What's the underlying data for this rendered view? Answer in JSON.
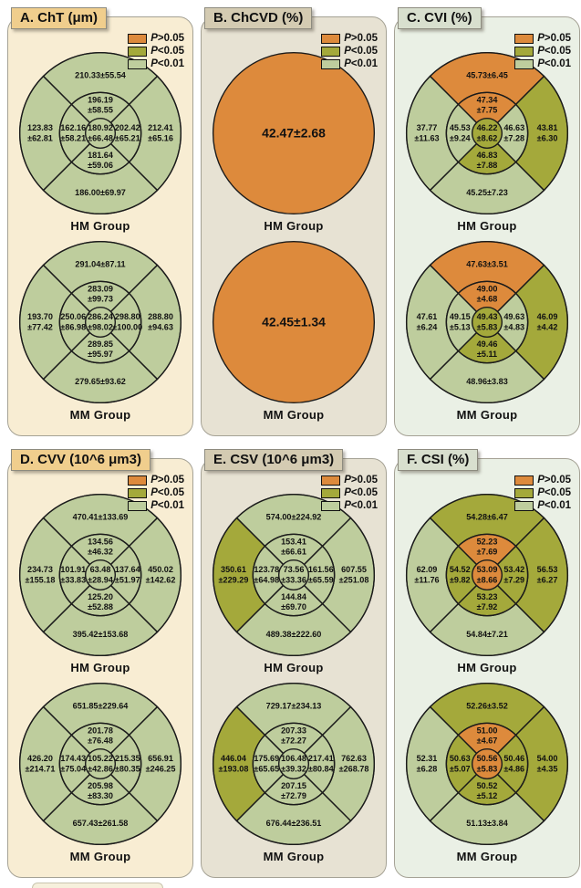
{
  "colors": {
    "ns": "#DD8A3C",
    "p05": "#A4A93B",
    "p01": "#BECD9D",
    "stroke": "#1b1b1b",
    "text": "#111111"
  },
  "themes": {
    "tan": {
      "panel": "#F8EDD3",
      "title": "#F0CE8D"
    },
    "gray": {
      "panel": "#E7E2D3",
      "title": "#D4CBB2"
    },
    "green": {
      "panel": "#EAF0E5",
      "title": "#D8DFCE"
    }
  },
  "legend": [
    {
      "label": "P>0.05",
      "sig": "ns"
    },
    {
      "label": "P<0.05",
      "sig": "p05"
    },
    {
      "label": "P<0.01",
      "sig": "p01"
    }
  ],
  "chart_data": [
    {
      "id": "A",
      "title": "A. ChT (μm)",
      "theme": "tan",
      "type": "etdrs_sector_map",
      "groups": [
        {
          "label": "HM Group",
          "sectors": {
            "outer_top": {
              "v": "210.33±55.54",
              "sig": "p01"
            },
            "outer_right": {
              "v": "212.41",
              "v2": "±65.16",
              "sig": "p01"
            },
            "outer_bottom": {
              "v": "186.00±69.97",
              "sig": "p01"
            },
            "outer_left": {
              "v": "123.83",
              "v2": "±62.81",
              "sig": "p01"
            },
            "inner_top": {
              "v": "196.19",
              "v2": "±58.55",
              "sig": "p01"
            },
            "inner_right": {
              "v": "202.42",
              "v2": "±65.21",
              "sig": "p01"
            },
            "inner_bottom": {
              "v": "181.64",
              "v2": "±59.06",
              "sig": "p01"
            },
            "inner_left": {
              "v": "162.16",
              "v2": "±58.21",
              "sig": "p01"
            },
            "center": {
              "v": "180.92",
              "v2": "±66.48",
              "sig": "p01"
            }
          }
        },
        {
          "label": "MM Group",
          "sectors": {
            "outer_top": {
              "v": "291.04±87.11",
              "sig": "p01"
            },
            "outer_right": {
              "v": "288.80",
              "v2": "±94.63",
              "sig": "p01"
            },
            "outer_bottom": {
              "v": "279.65±93.62",
              "sig": "p01"
            },
            "outer_left": {
              "v": "193.70",
              "v2": "±77.42",
              "sig": "p01"
            },
            "inner_top": {
              "v": "283.09",
              "v2": "±99.73",
              "sig": "p01"
            },
            "inner_right": {
              "v": "298.80",
              "v2": "±100.00",
              "sig": "p01"
            },
            "inner_bottom": {
              "v": "289.85",
              "v2": "±95.97",
              "sig": "p01"
            },
            "inner_left": {
              "v": "250.06",
              "v2": "±86.98",
              "sig": "p01"
            },
            "center": {
              "v": "286.24",
              "v2": "±98.02",
              "sig": "p01"
            }
          }
        }
      ]
    },
    {
      "id": "B",
      "title": "B. ChCVD (%)",
      "theme": "gray",
      "type": "etdrs_sector_map",
      "groups": [
        {
          "label": "HM Group",
          "uniform": {
            "v": "42.47±2.68",
            "sig": "ns"
          }
        },
        {
          "label": "MM Group",
          "uniform": {
            "v": "42.45±1.34",
            "sig": "ns"
          }
        }
      ]
    },
    {
      "id": "C",
      "title": "C. CVI (%)",
      "theme": "green",
      "type": "etdrs_sector_map",
      "groups": [
        {
          "label": "HM Group",
          "sectors": {
            "outer_top": {
              "v": "45.73±6.45",
              "sig": "ns"
            },
            "outer_right": {
              "v": "43.81",
              "v2": "±6.30",
              "sig": "p05"
            },
            "outer_bottom": {
              "v": "45.25±7.23",
              "sig": "p01"
            },
            "outer_left": {
              "v": "37.77",
              "v2": "±11.63",
              "sig": "p01"
            },
            "inner_top": {
              "v": "47.34",
              "v2": "±7.75",
              "sig": "ns"
            },
            "inner_right": {
              "v": "46.63",
              "v2": "±7.28",
              "sig": "p01"
            },
            "inner_bottom": {
              "v": "46.83",
              "v2": "±7.88",
              "sig": "p05"
            },
            "inner_left": {
              "v": "45.53",
              "v2": "±9.24",
              "sig": "p01"
            },
            "center": {
              "v": "46.22",
              "v2": "±8.62",
              "sig": "p05"
            }
          }
        },
        {
          "label": "MM Group",
          "sectors": {
            "outer_top": {
              "v": "47.63±3.51",
              "sig": "ns"
            },
            "outer_right": {
              "v": "46.09",
              "v2": "±4.42",
              "sig": "p05"
            },
            "outer_bottom": {
              "v": "48.96±3.83",
              "sig": "p01"
            },
            "outer_left": {
              "v": "47.61",
              "v2": "±6.24",
              "sig": "p01"
            },
            "inner_top": {
              "v": "49.00",
              "v2": "±4.68",
              "sig": "ns"
            },
            "inner_right": {
              "v": "49.63",
              "v2": "±4.83",
              "sig": "p01"
            },
            "inner_bottom": {
              "v": "49.46",
              "v2": "±5.11",
              "sig": "p05"
            },
            "inner_left": {
              "v": "49.15",
              "v2": "±5.13",
              "sig": "p01"
            },
            "center": {
              "v": "49.43",
              "v2": "±5.83",
              "sig": "p05"
            }
          }
        }
      ]
    },
    {
      "id": "D",
      "title": "D. CVV (10^6 μm3)",
      "theme": "tan",
      "type": "etdrs_sector_map",
      "groups": [
        {
          "label": "HM Group",
          "sectors": {
            "outer_top": {
              "v": "470.41±133.69",
              "sig": "p01"
            },
            "outer_right": {
              "v": "450.02",
              "v2": "±142.62",
              "sig": "p01"
            },
            "outer_bottom": {
              "v": "395.42±153.68",
              "sig": "p01"
            },
            "outer_left": {
              "v": "234.73",
              "v2": "±155.18",
              "sig": "p01"
            },
            "inner_top": {
              "v": "134.56",
              "v2": "±46.32",
              "sig": "p01"
            },
            "inner_right": {
              "v": "137.64",
              "v2": "±51.97",
              "sig": "p01"
            },
            "inner_bottom": {
              "v": "125.20",
              "v2": "±52.88",
              "sig": "p01"
            },
            "inner_left": {
              "v": "101.91",
              "v2": "±33.83",
              "sig": "p01"
            },
            "center": {
              "v": "63.48",
              "v2": "±28.94",
              "sig": "p01"
            }
          }
        },
        {
          "label": "MM Group",
          "sectors": {
            "outer_top": {
              "v": "651.85±229.64",
              "sig": "p01"
            },
            "outer_right": {
              "v": "656.91",
              "v2": "±246.25",
              "sig": "p01"
            },
            "outer_bottom": {
              "v": "657.43±261.58",
              "sig": "p01"
            },
            "outer_left": {
              "v": "426.20",
              "v2": "±214.71",
              "sig": "p01"
            },
            "inner_top": {
              "v": "201.78",
              "v2": "±76.48",
              "sig": "p01"
            },
            "inner_right": {
              "v": "215.35",
              "v2": "±80.35",
              "sig": "p01"
            },
            "inner_bottom": {
              "v": "205.98",
              "v2": "±83.30",
              "sig": "p01"
            },
            "inner_left": {
              "v": "174.43",
              "v2": "±75.04",
              "sig": "p01"
            },
            "center": {
              "v": "105.22",
              "v2": "±42.86",
              "sig": "p01"
            }
          }
        }
      ]
    },
    {
      "id": "E",
      "title": "E. CSV (10^6 μm3)",
      "theme": "gray",
      "type": "etdrs_sector_map",
      "groups": [
        {
          "label": "HM Group",
          "sectors": {
            "outer_top": {
              "v": "574.00±224.92",
              "sig": "p01"
            },
            "outer_right": {
              "v": "607.55",
              "v2": "±251.08",
              "sig": "p01"
            },
            "outer_bottom": {
              "v": "489.38±222.60",
              "sig": "p01"
            },
            "outer_left": {
              "v": "350.61",
              "v2": "±229.29",
              "sig": "p05"
            },
            "inner_top": {
              "v": "153.41",
              "v2": "±66.61",
              "sig": "p01"
            },
            "inner_right": {
              "v": "161.56",
              "v2": "±65.59",
              "sig": "p01"
            },
            "inner_bottom": {
              "v": "144.84",
              "v2": "±69.70",
              "sig": "p01"
            },
            "inner_left": {
              "v": "123.78",
              "v2": "±64.98",
              "sig": "p01"
            },
            "center": {
              "v": "73.56",
              "v2": "±33.36",
              "sig": "p01"
            }
          }
        },
        {
          "label": "MM Group",
          "sectors": {
            "outer_top": {
              "v": "729.17±234.13",
              "sig": "p01"
            },
            "outer_right": {
              "v": "762.63",
              "v2": "±268.78",
              "sig": "p01"
            },
            "outer_bottom": {
              "v": "676.44±236.51",
              "sig": "p01"
            },
            "outer_left": {
              "v": "446.04",
              "v2": "±193.08",
              "sig": "p05"
            },
            "inner_top": {
              "v": "207.33",
              "v2": "±72.27",
              "sig": "p01"
            },
            "inner_right": {
              "v": "217.41",
              "v2": "±80.84",
              "sig": "p01"
            },
            "inner_bottom": {
              "v": "207.15",
              "v2": "±72.79",
              "sig": "p01"
            },
            "inner_left": {
              "v": "175.69",
              "v2": "±65.65",
              "sig": "p01"
            },
            "center": {
              "v": "106.48",
              "v2": "±39.32",
              "sig": "p01"
            }
          }
        }
      ]
    },
    {
      "id": "F",
      "title": "F. CSI (%)",
      "theme": "green",
      "type": "etdrs_sector_map",
      "groups": [
        {
          "label": "HM Group",
          "sectors": {
            "outer_top": {
              "v": "54.28±6.47",
              "sig": "p05"
            },
            "outer_right": {
              "v": "56.53",
              "v2": "±6.27",
              "sig": "p05"
            },
            "outer_bottom": {
              "v": "54.84±7.21",
              "sig": "p01"
            },
            "outer_left": {
              "v": "62.09",
              "v2": "±11.76",
              "sig": "p01"
            },
            "inner_top": {
              "v": "52.23",
              "v2": "±7.69",
              "sig": "ns"
            },
            "inner_right": {
              "v": "53.42",
              "v2": "±7.29",
              "sig": "p05"
            },
            "inner_bottom": {
              "v": "53.23",
              "v2": "±7.92",
              "sig": "p05"
            },
            "inner_left": {
              "v": "54.52",
              "v2": "±9.82",
              "sig": "p05"
            },
            "center": {
              "v": "53.09",
              "v2": "±8.66",
              "sig": "ns"
            }
          }
        },
        {
          "label": "MM Group",
          "sectors": {
            "outer_top": {
              "v": "52.26±3.52",
              "sig": "p05"
            },
            "outer_right": {
              "v": "54.00",
              "v2": "±4.35",
              "sig": "p05"
            },
            "outer_bottom": {
              "v": "51.13±3.84",
              "sig": "p01"
            },
            "outer_left": {
              "v": "52.31",
              "v2": "±6.28",
              "sig": "p01"
            },
            "inner_top": {
              "v": "51.00",
              "v2": "±4.67",
              "sig": "ns"
            },
            "inner_right": {
              "v": "50.46",
              "v2": "±4.86",
              "sig": "p05"
            },
            "inner_bottom": {
              "v": "50.52",
              "v2": "±5.12",
              "sig": "p05"
            },
            "inner_left": {
              "v": "50.63",
              "v2": "±5.07",
              "sig": "p05"
            },
            "center": {
              "v": "50.56",
              "v2": "±5.83",
              "sig": "ns"
            }
          }
        }
      ]
    }
  ]
}
